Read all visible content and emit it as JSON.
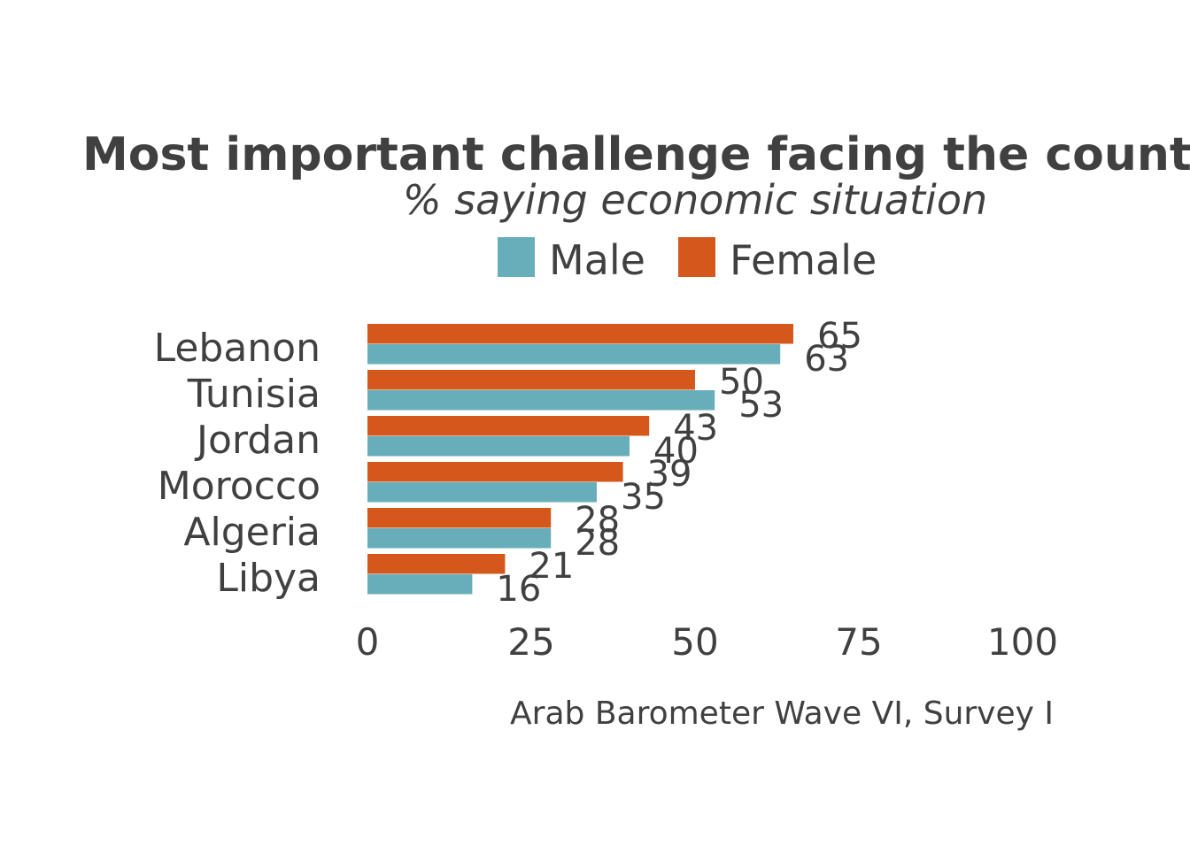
{
  "chart_data": {
    "type": "bar",
    "orientation": "horizontal",
    "title": "Most important challenge facing the country",
    "subtitle": "% saying economic situation",
    "caption": "Arab Barometer Wave VI, Survey I",
    "categories": [
      "Lebanon",
      "Tunisia",
      "Jordan",
      "Morocco",
      "Algeria",
      "Libya"
    ],
    "series": [
      {
        "name": "Male",
        "color": "#67aeba",
        "values": [
          63,
          53,
          40,
          35,
          28,
          16
        ]
      },
      {
        "name": "Female",
        "color": "#d4581c",
        "values": [
          65,
          50,
          43,
          39,
          28,
          21
        ]
      }
    ],
    "xlim": [
      0,
      100
    ],
    "xticks": [
      0,
      25,
      50,
      75,
      100
    ],
    "legend_position": "top",
    "grid": false
  }
}
